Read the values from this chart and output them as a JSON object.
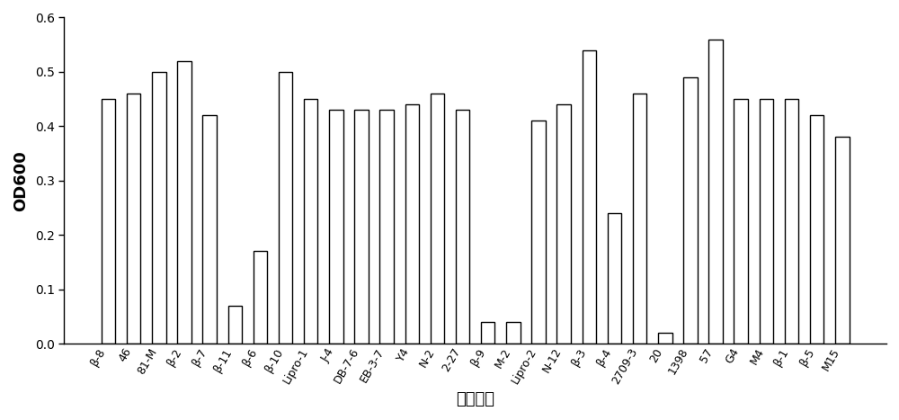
{
  "categories": [
    "β-8",
    "46",
    "81-M",
    "β-2",
    "β-7",
    "β-11",
    "β-6",
    "β-10",
    "Lipro-1",
    "J-4",
    "DB-7-6",
    "EB-3-7",
    "Y4",
    "N-2",
    "2-27",
    "β-9",
    "M-2",
    "Lipro-2",
    "N-12",
    "β-3",
    "β-4",
    "2709-3",
    "20",
    "1398",
    "57",
    "G4",
    "M4",
    "β-1",
    "β-5",
    "M15"
  ],
  "values": [
    0.45,
    0.46,
    0.5,
    0.52,
    0.42,
    0.07,
    0.17,
    0.5,
    0.45,
    0.43,
    0.43,
    0.43,
    0.44,
    0.46,
    0.43,
    0.04,
    0.04,
    0.41,
    0.44,
    0.54,
    0.24,
    0.46,
    0.02,
    0.49,
    0.56,
    0.45,
    0.45,
    0.45,
    0.42,
    0.38
  ],
  "bar_color": "white",
  "bar_edgecolor": "black",
  "bar_linewidth": 1.0,
  "ylabel": "OD600",
  "xlabel": "菌株编号",
  "ylim": [
    0,
    0.6
  ],
  "yticks": [
    0,
    0.1,
    0.2,
    0.3,
    0.4,
    0.5,
    0.6
  ],
  "ylabel_fontsize": 13,
  "xlabel_fontsize": 13,
  "tick_fontsize": 10,
  "xtick_fontsize": 9,
  "bar_width": 0.55,
  "background_color": "white",
  "rotation": 60
}
